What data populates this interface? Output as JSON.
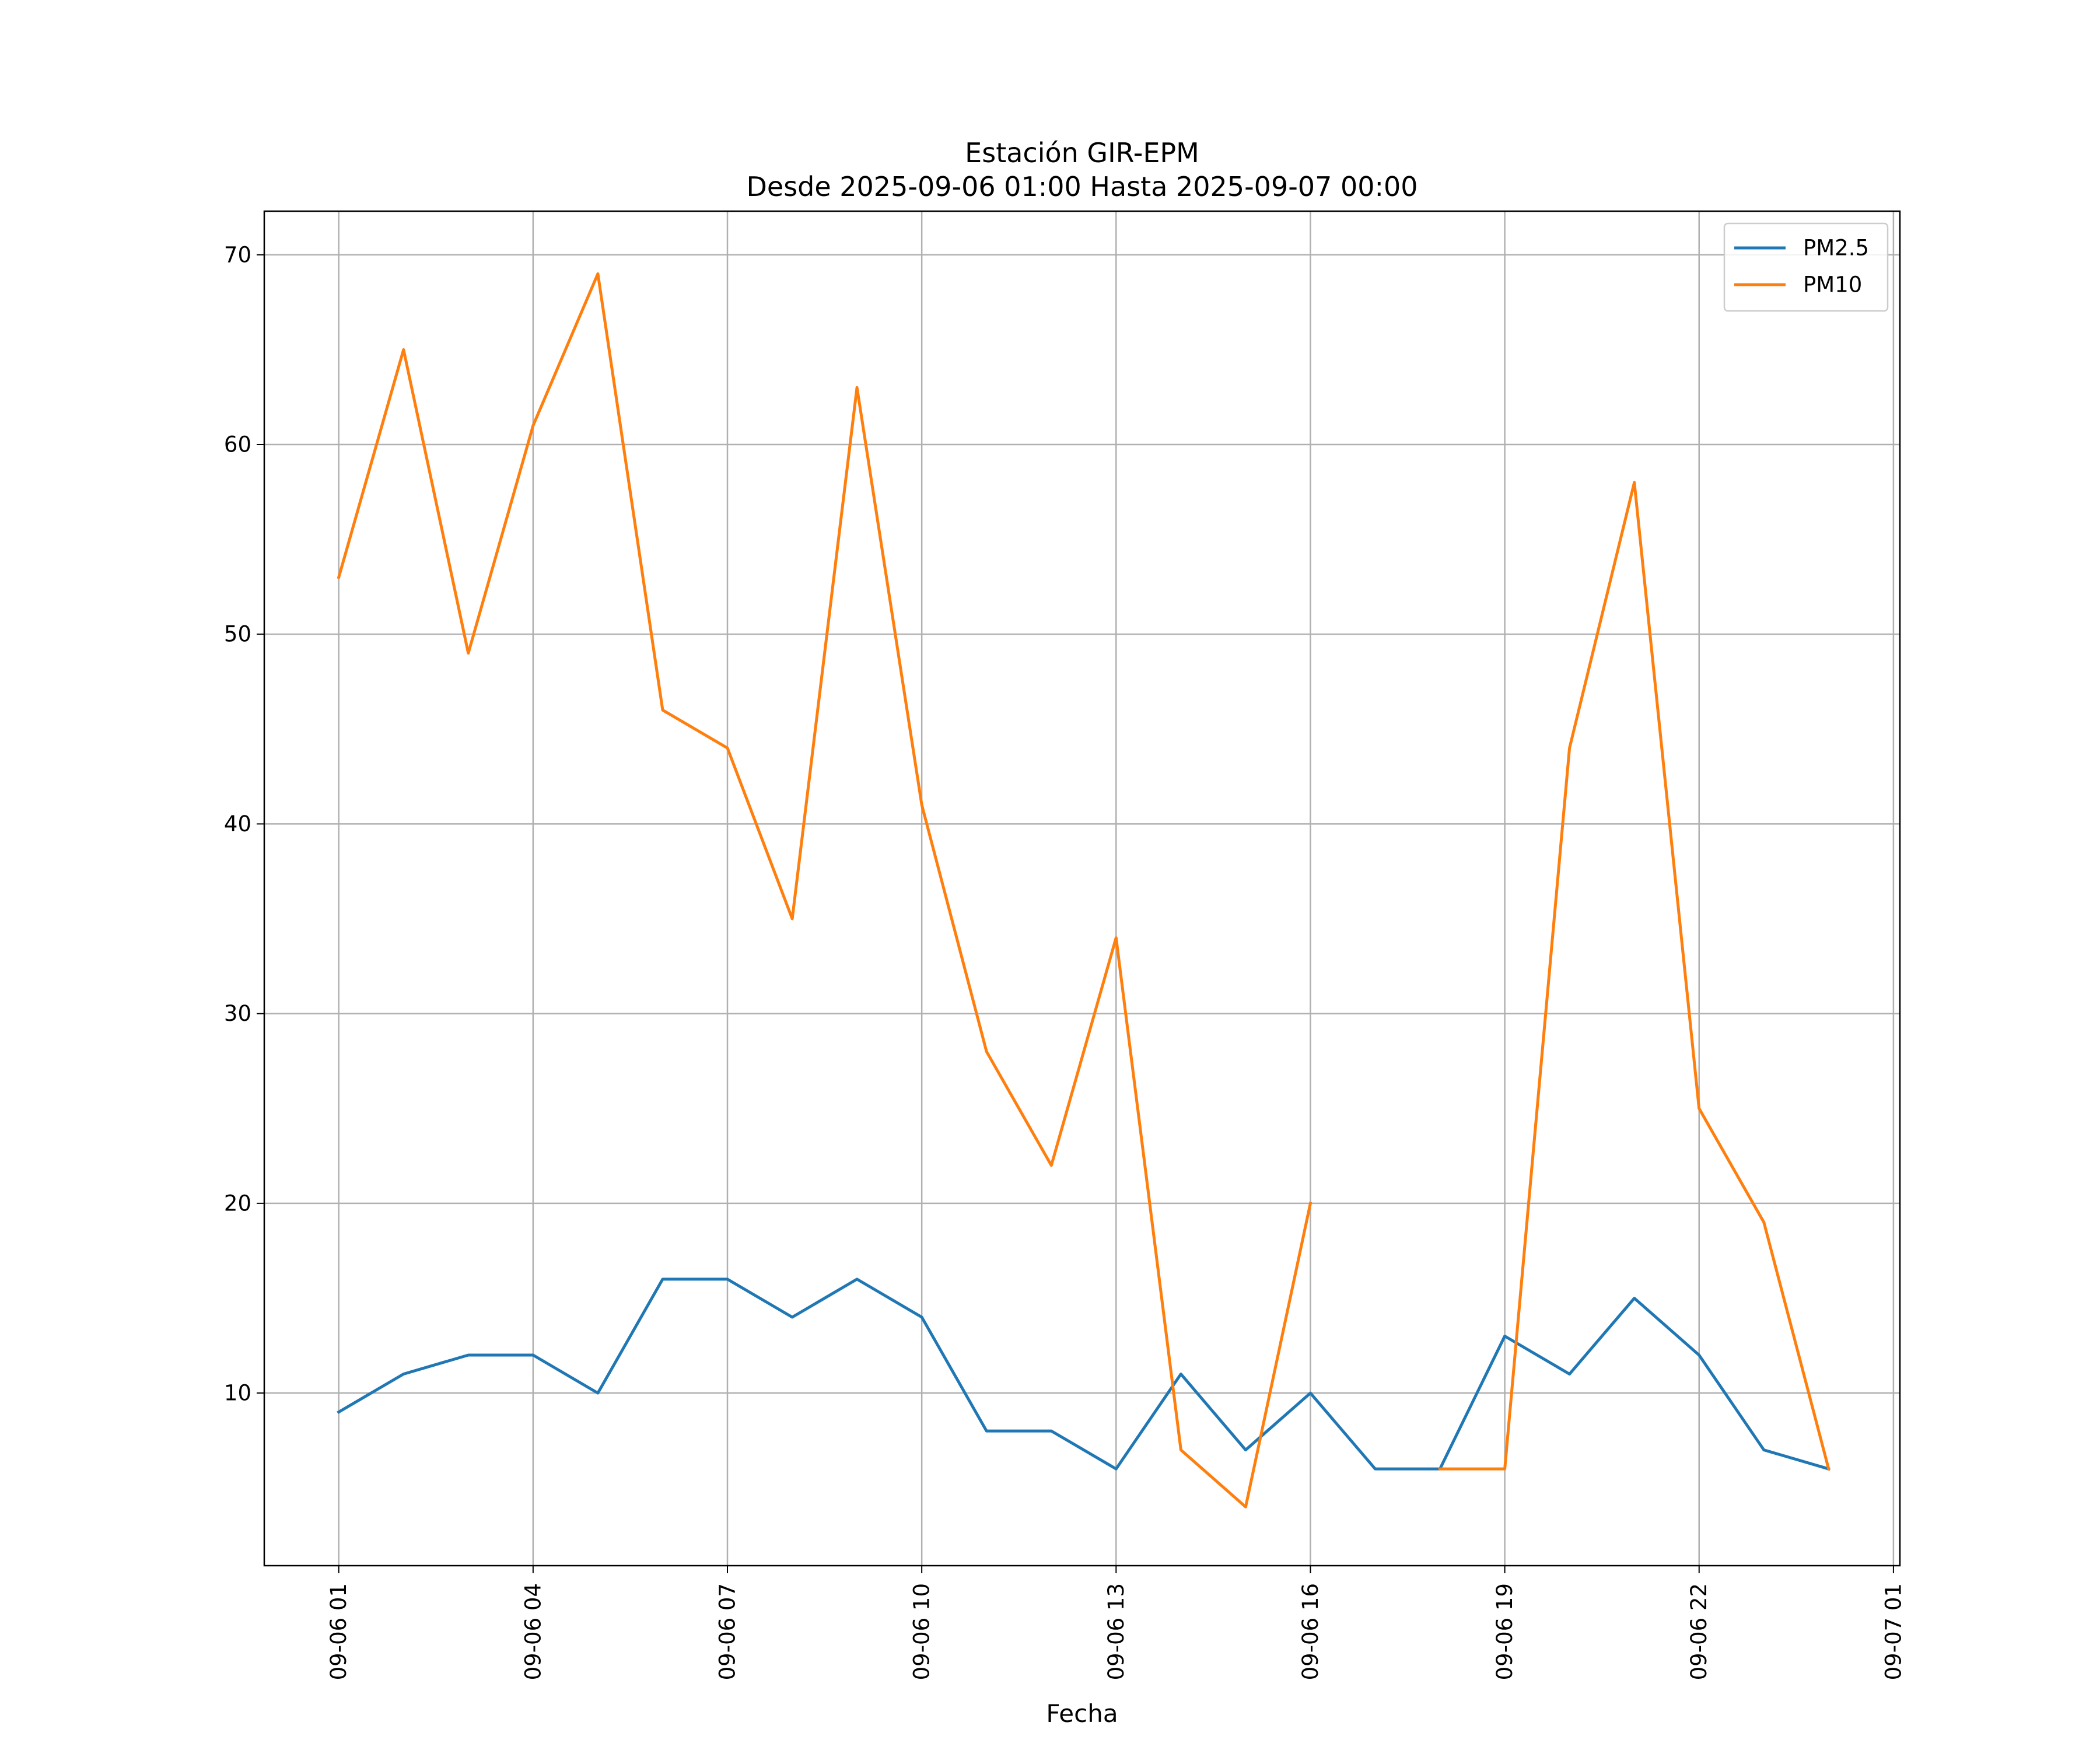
{
  "chart_data": {
    "type": "line",
    "title": "Estación GIR-EPM",
    "subtitle": "Desde 2025-09-06 01:00 Hasta 2025-09-07 00:00",
    "xlabel": "Fecha",
    "ylabel": "",
    "x_hours": [
      1,
      2,
      3,
      4,
      5,
      6,
      7,
      8,
      9,
      10,
      11,
      12,
      13,
      14,
      15,
      16,
      17,
      18,
      19,
      20,
      21,
      22,
      23,
      24
    ],
    "xlim_hours": [
      -0.15,
      25.1
    ],
    "ylim": [
      0.9,
      72.3
    ],
    "x_ticks": [
      {
        "hour": 1,
        "label": "09-06 01"
      },
      {
        "hour": 4,
        "label": "09-06 04"
      },
      {
        "hour": 7,
        "label": "09-06 07"
      },
      {
        "hour": 10,
        "label": "09-06 10"
      },
      {
        "hour": 13,
        "label": "09-06 13"
      },
      {
        "hour": 16,
        "label": "09-06 16"
      },
      {
        "hour": 19,
        "label": "09-06 19"
      },
      {
        "hour": 22,
        "label": "09-06 22"
      },
      {
        "hour": 25,
        "label": "09-07 01"
      }
    ],
    "y_ticks": [
      10,
      20,
      30,
      40,
      50,
      60,
      70
    ],
    "grid": true,
    "legend_position": "top-right",
    "series": [
      {
        "name": "PM2.5",
        "color": "#1f77b4",
        "values": [
          9,
          11,
          12,
          12,
          10,
          16,
          16,
          14,
          16,
          14,
          8,
          8,
          6,
          11,
          7,
          10,
          6,
          6,
          13,
          11,
          15,
          12,
          7,
          6
        ]
      },
      {
        "name": "PM10",
        "color": "#ff7f0e",
        "values": [
          53,
          65,
          49,
          61,
          69,
          46,
          44,
          35,
          63,
          41,
          28,
          22,
          34,
          7,
          4,
          20,
          null,
          6,
          6,
          44,
          58,
          25,
          19,
          6
        ]
      }
    ]
  }
}
